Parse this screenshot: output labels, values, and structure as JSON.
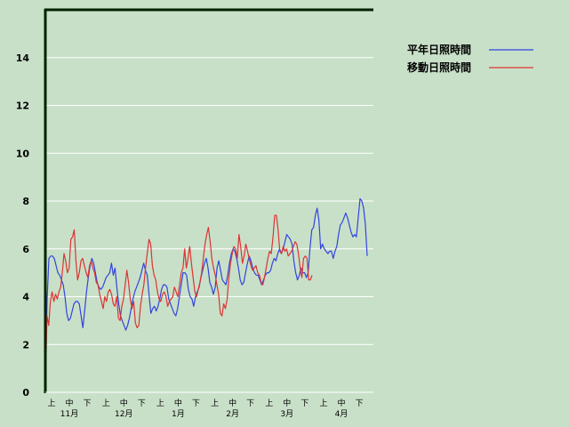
{
  "chart_data": {
    "type": "line",
    "title": "",
    "xlabel": "",
    "ylabel": "",
    "ylim": [
      0,
      16
    ],
    "yticks": [
      0,
      2,
      4,
      6,
      8,
      10,
      12,
      14
    ],
    "grid": true,
    "legend_position": "top-right",
    "period_labels": [
      "上",
      "中",
      "下"
    ],
    "months": [
      "11月",
      "12月",
      "1月",
      "2月",
      "3月",
      "4月"
    ],
    "series": [
      {
        "name": "平年日照時間",
        "color": "#3344dd",
        "values": [
          0.1,
          3.9,
          5.6,
          5.7,
          5.7,
          5.6,
          5.3,
          5.0,
          4.9,
          4.7,
          4.5,
          4.0,
          3.3,
          3.0,
          3.1,
          3.4,
          3.7,
          3.8,
          3.8,
          3.7,
          3.2,
          2.7,
          3.4,
          4.2,
          4.8,
          5.3,
          5.6,
          5.4,
          5.0,
          4.6,
          4.4,
          4.3,
          4.4,
          4.6,
          4.8,
          4.9,
          5.0,
          5.4,
          4.9,
          5.2,
          4.4,
          3.7,
          3.2,
          3.0,
          2.8,
          2.6,
          2.8,
          3.1,
          3.5,
          3.9,
          4.2,
          4.4,
          4.6,
          4.8,
          5.1,
          5.4,
          5.1,
          4.9,
          4.1,
          3.3,
          3.5,
          3.6,
          3.4,
          3.6,
          3.9,
          4.3,
          4.5,
          4.5,
          4.4,
          3.9,
          3.7,
          3.5,
          3.3,
          3.2,
          3.5,
          4.0,
          4.5,
          5.0,
          5.0,
          4.9,
          4.3,
          4.0,
          3.9,
          3.6,
          4.0,
          4.2,
          4.4,
          4.8,
          5.1,
          5.4,
          5.6,
          5.2,
          4.6,
          4.4,
          4.1,
          4.4,
          5.2,
          5.5,
          5.1,
          4.7,
          4.6,
          4.5,
          4.9,
          5.4,
          5.8,
          6.0,
          5.9,
          5.6,
          5.2,
          4.7,
          4.5,
          4.6,
          5.0,
          5.4,
          5.7,
          5.5,
          5.2,
          5.0,
          4.9,
          4.9,
          4.7,
          4.5,
          4.7,
          4.9,
          5.0,
          5.0,
          5.1,
          5.4,
          5.6,
          5.5,
          5.8,
          6.0,
          5.8,
          6.0,
          6.3,
          6.6,
          6.5,
          6.4,
          6.2,
          5.5,
          5.0,
          4.7,
          4.9,
          5.2,
          5.0,
          5.0,
          4.8,
          5.0,
          6.0,
          6.8,
          6.9,
          7.4,
          7.7,
          7.2,
          6.0,
          6.2,
          6.0,
          5.9,
          5.8,
          5.9,
          5.9,
          5.6,
          5.9,
          6.1,
          6.6,
          7.0,
          7.1,
          7.3,
          7.5,
          7.3,
          7.0,
          6.7,
          6.5,
          6.6,
          6.5,
          7.3,
          8.1,
          8.0,
          7.7,
          7.0,
          5.7
        ]
      },
      {
        "name": "移動日照時間",
        "color": "#dd3333",
        "values": [
          0.2,
          3.2,
          2.8,
          3.8,
          4.2,
          3.8,
          4.1,
          3.9,
          4.2,
          4.4,
          5.0,
          5.8,
          5.5,
          5.0,
          5.2,
          6.4,
          6.5,
          6.8,
          5.5,
          4.7,
          5.0,
          5.5,
          5.6,
          5.3,
          5.0,
          4.8,
          5.3,
          5.5,
          5.2,
          5.0,
          4.6,
          4.5,
          4.1,
          3.8,
          3.5,
          4.0,
          3.8,
          4.2,
          4.3,
          4.1,
          3.7,
          3.6,
          4.0,
          3.1,
          3.0,
          3.6,
          3.9,
          4.5,
          5.1,
          4.6,
          3.9,
          3.5,
          3.8,
          2.9,
          2.7,
          2.8,
          3.6,
          4.1,
          4.5,
          5.2,
          5.8,
          6.4,
          6.2,
          5.3,
          4.9,
          4.7,
          4.2,
          3.9,
          3.8,
          4.1,
          4.2,
          4.0,
          3.6,
          3.8,
          3.9,
          4.0,
          4.4,
          4.2,
          4.0,
          4.5,
          5.0,
          5.2,
          6.0,
          5.2,
          5.6,
          6.1,
          5.4,
          4.8,
          4.2,
          4.0,
          4.3,
          4.6,
          5.0,
          5.6,
          6.2,
          6.6,
          6.9,
          6.3,
          5.6,
          5.2,
          4.9,
          4.5,
          4.1,
          3.3,
          3.2,
          3.7,
          3.5,
          3.9,
          4.8,
          5.4,
          5.8,
          6.1,
          6.0,
          5.6,
          6.6,
          6.1,
          5.4,
          5.7,
          6.2,
          5.9,
          5.6,
          5.3,
          5.1,
          5.2,
          5.3,
          5.0,
          4.9,
          4.6,
          4.5,
          4.8,
          5.2,
          5.6,
          5.9,
          5.8,
          6.5,
          7.4,
          7.4,
          6.8,
          5.9,
          5.8,
          6.1,
          5.9,
          6.0,
          5.7,
          5.8,
          5.9,
          6.1,
          6.3,
          6.2,
          5.8,
          5.2,
          4.8,
          5.6,
          5.7,
          5.6,
          4.7,
          4.7,
          4.9
        ]
      }
    ]
  }
}
